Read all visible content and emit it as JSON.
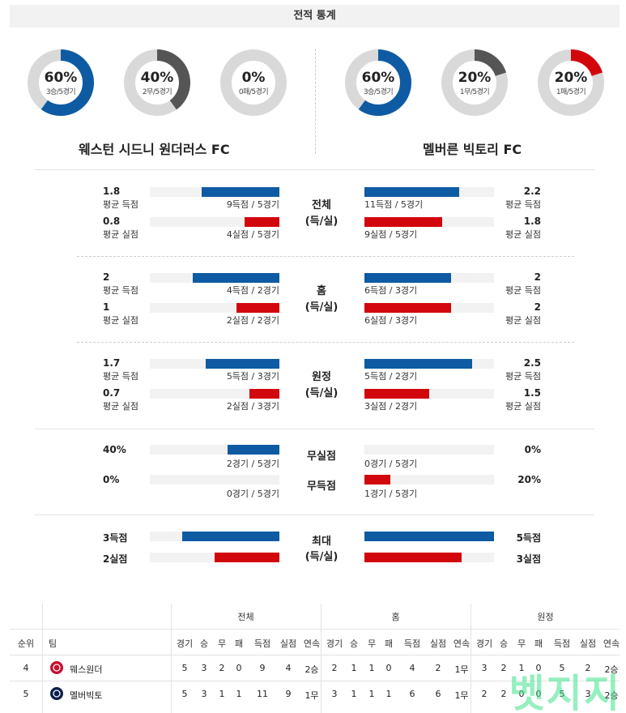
{
  "title": "전적 통계",
  "donuts": [
    {
      "pct": "60%",
      "sub": "3승/5경기",
      "value": 0.6,
      "color": "#0e5ba3"
    },
    {
      "pct": "40%",
      "sub": "2무/5경기",
      "value": 0.4,
      "color": "#555555"
    },
    {
      "pct": "0%",
      "sub": "0패/5경기",
      "value": 0.0,
      "color": "#d2070d"
    },
    {
      "pct": "60%",
      "sub": "3승/5경기",
      "value": 0.6,
      "color": "#0e5ba3"
    },
    {
      "pct": "20%",
      "sub": "1무/5경기",
      "value": 0.2,
      "color": "#555555"
    },
    {
      "pct": "20%",
      "sub": "1패/5경기",
      "value": 0.2,
      "color": "#d2070d"
    }
  ],
  "teams": {
    "left": "웨스턴 시드니 원더러스 FC",
    "right": "멜버른 빅토리 FC"
  },
  "colors": {
    "blue": "#0e5ba3",
    "red": "#d2070d",
    "track": "#f2f2f2"
  },
  "sections": [
    {
      "label1": "전체",
      "label2": "(득/실)",
      "left": {
        "top": {
          "num": "1.8",
          "lbl": "평균 득점",
          "bar": "9득점 / 5경기",
          "fill": 0.6
        },
        "bot": {
          "num": "0.8",
          "lbl": "평균 실점",
          "bar": "4실점 / 5경기",
          "fill": 0.27
        }
      },
      "right": {
        "top": {
          "num": "2.2",
          "lbl": "평균 득점",
          "bar": "11득점 / 5경기",
          "fill": 0.73
        },
        "bot": {
          "num": "1.8",
          "lbl": "평균 실점",
          "bar": "9실점 / 5경기",
          "fill": 0.6
        }
      }
    },
    {
      "label1": "홈",
      "label2": "(득/실)",
      "left": {
        "top": {
          "num": "2",
          "lbl": "평균 득점",
          "bar": "4득점 / 2경기",
          "fill": 0.67
        },
        "bot": {
          "num": "1",
          "lbl": "평균 실점",
          "bar": "2실점 / 2경기",
          "fill": 0.33
        }
      },
      "right": {
        "top": {
          "num": "2",
          "lbl": "평균 득점",
          "bar": "6득점 / 3경기",
          "fill": 0.67
        },
        "bot": {
          "num": "2",
          "lbl": "평균 실점",
          "bar": "6실점 / 3경기",
          "fill": 0.67
        }
      }
    },
    {
      "label1": "원정",
      "label2": "(득/실)",
      "left": {
        "top": {
          "num": "1.7",
          "lbl": "평균 득점",
          "bar": "5득점 / 3경기",
          "fill": 0.57
        },
        "bot": {
          "num": "0.7",
          "lbl": "평균 실점",
          "bar": "2실점 / 3경기",
          "fill": 0.23
        }
      },
      "right": {
        "top": {
          "num": "2.5",
          "lbl": "평균 득점",
          "bar": "5득점 / 2경기",
          "fill": 0.83
        },
        "bot": {
          "num": "1.5",
          "lbl": "평균 실점",
          "bar": "3실점 / 2경기",
          "fill": 0.5
        }
      }
    }
  ],
  "cleansheet": {
    "label_top": "무실점",
    "label_bot": "무득점",
    "left": {
      "top": {
        "num": "40%",
        "bar": "2경기 / 5경기",
        "fill": 0.4
      },
      "bot": {
        "num": "0%",
        "bar": "0경기 / 5경기",
        "fill": 0.0
      }
    },
    "right": {
      "top": {
        "num": "0%",
        "bar": "0경기 / 5경기",
        "fill": 0.0
      },
      "bot": {
        "num": "20%",
        "bar": "1경기 / 5경기",
        "fill": 0.2
      }
    }
  },
  "max": {
    "label1": "최대",
    "label2": "(득/실)",
    "left": {
      "top": {
        "num": "3득점",
        "fill": 0.75
      },
      "bot": {
        "num": "2실점",
        "fill": 0.5
      }
    },
    "right": {
      "top": {
        "num": "5득점",
        "fill": 1.0
      },
      "bot": {
        "num": "3실점",
        "fill": 0.75
      }
    }
  },
  "table": {
    "groups": [
      "전체",
      "홈",
      "원정"
    ],
    "rank_header": "순위",
    "team_header": "팀",
    "sub_headers": [
      "경기",
      "승",
      "무",
      "패",
      "득점",
      "실점",
      "연속"
    ],
    "rows": [
      {
        "rank": "4",
        "team": "웨스원더",
        "logo_color": "#c8102e",
        "all": [
          "5",
          "3",
          "2",
          "0",
          "9",
          "4",
          "2승"
        ],
        "home": [
          "2",
          "1",
          "1",
          "0",
          "4",
          "2",
          "1무"
        ],
        "away": [
          "3",
          "2",
          "1",
          "0",
          "5",
          "2",
          "2승"
        ]
      },
      {
        "rank": "5",
        "team": "멜버빅토",
        "logo_color": "#0b1f4d",
        "all": [
          "5",
          "3",
          "1",
          "1",
          "11",
          "9",
          "1무"
        ],
        "home": [
          "3",
          "1",
          "1",
          "1",
          "6",
          "6",
          "1무"
        ],
        "away": [
          "2",
          "2",
          "0",
          "0",
          "5",
          "3",
          "2승"
        ]
      }
    ]
  },
  "watermark": "벳지지"
}
